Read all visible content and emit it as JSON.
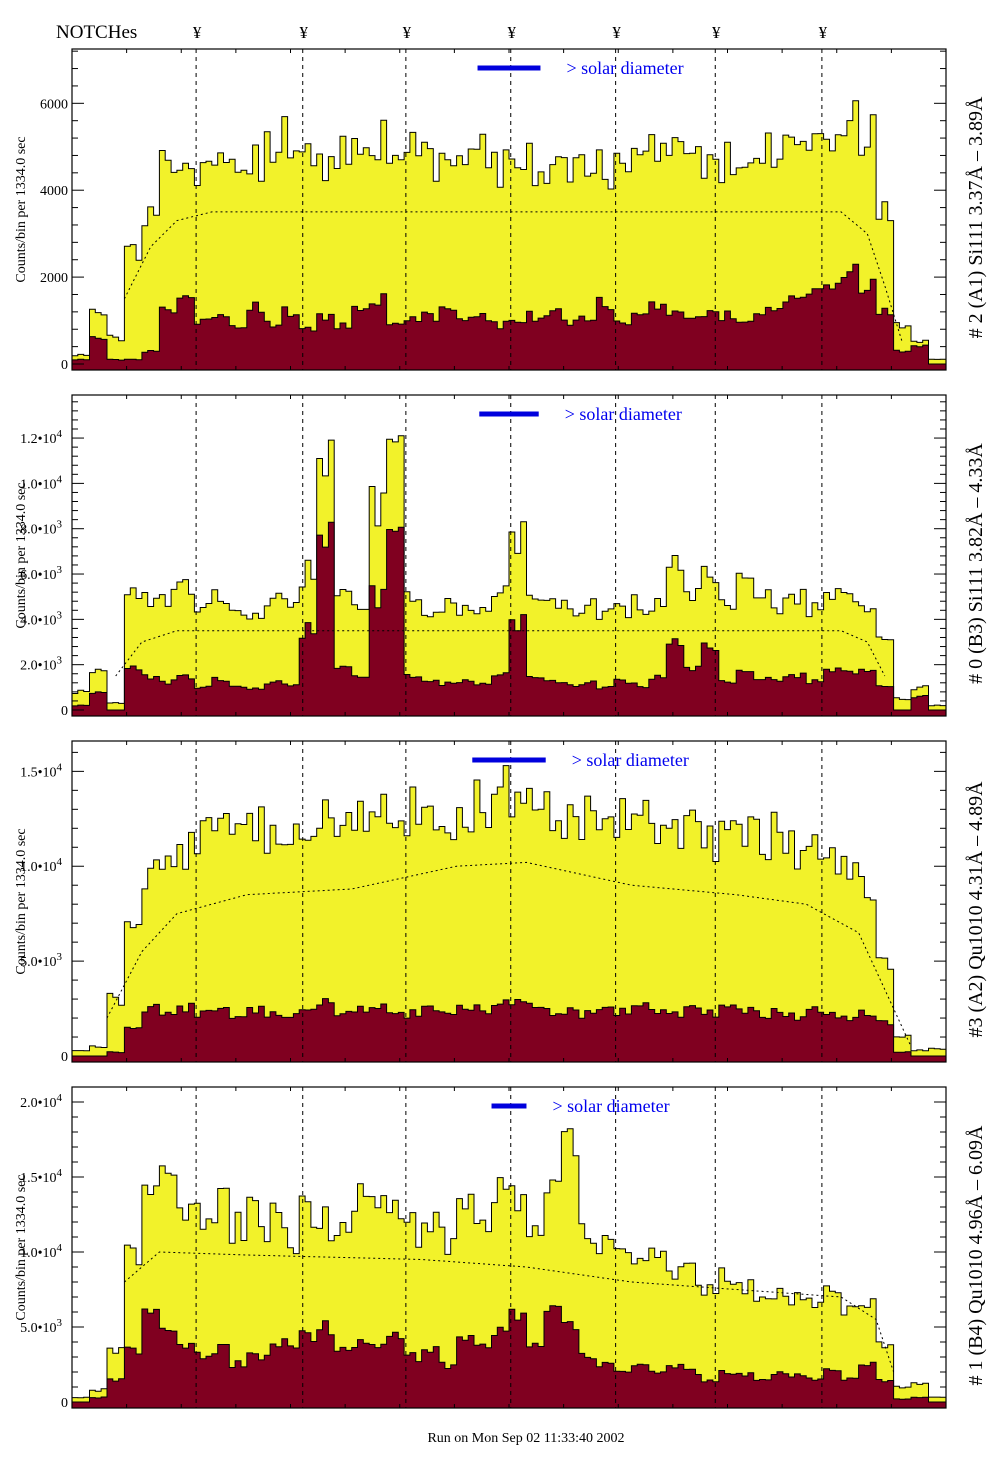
{
  "header": {
    "notches_label": "NOTCHes",
    "notch_symbol": "¥"
  },
  "footer": {
    "run_text": "Run on Mon Sep 02 11:33:40 2002"
  },
  "colors": {
    "total": "#f2f22a",
    "component": "#800020",
    "solar_bar": "#0000dd",
    "solar_text": "#0000ee"
  },
  "chart_data": [
    {
      "type": "bar",
      "title": "# 2 (A1) Si111  3.37Å – 3.89Å",
      "ylabel": "Counts/bin per   1334.0 sec",
      "xlabel": "",
      "ylim": [
        0,
        7250
      ],
      "xlim": [
        0,
        50
      ],
      "yticks": [
        {
          "v": 0,
          "m": "0",
          "e": ""
        },
        {
          "v": 2000,
          "m": "2000",
          "e": ""
        },
        {
          "v": 4000,
          "m": "4000",
          "e": ""
        },
        {
          "v": 6000,
          "m": "6000",
          "e": ""
        }
      ],
      "notches": [
        7.1,
        13.2,
        19.1,
        25.1,
        31.1,
        36.8,
        42.9
      ],
      "solar": {
        "label": "> solar diameter",
        "from": 23.2,
        "to": 26.8
      },
      "total": [
        200,
        1200,
        600,
        2500,
        3500,
        4500,
        5000,
        4500,
        4700,
        4800,
        4600,
        4900,
        5200,
        4800,
        4600,
        5000,
        4700,
        5200,
        4600,
        4900,
        4700,
        4800,
        4600,
        5000,
        4500,
        4700,
        4600,
        4500,
        4700,
        4800,
        4500,
        4900,
        5100,
        4800,
        4700,
        4600,
        4700,
        4600,
        4700,
        4900,
        4800,
        5000,
        5200,
        5400,
        5800,
        5300,
        3500,
        900,
        500,
        100
      ],
      "component": [
        100,
        600,
        100,
        100,
        300,
        1200,
        1700,
        1000,
        1100,
        900,
        1300,
        900,
        1200,
        800,
        1100,
        900,
        1200,
        1500,
        900,
        1000,
        1100,
        1300,
        1000,
        1100,
        900,
        1000,
        1100,
        1200,
        1000,
        1100,
        1400,
        1000,
        1200,
        1300,
        1100,
        1000,
        1200,
        1100,
        1000,
        1200,
        1300,
        1500,
        1700,
        1900,
        2200,
        1800,
        1200,
        300,
        400,
        0
      ],
      "model": [
        [
          3,
          1500
        ],
        [
          4.5,
          2700
        ],
        [
          6,
          3300
        ],
        [
          8,
          3500
        ],
        [
          44,
          3500
        ],
        [
          45.5,
          3000
        ],
        [
          46.5,
          1800
        ],
        [
          47.5,
          500
        ]
      ]
    },
    {
      "type": "bar",
      "title": "# 0 (B3) Si111  3.82Å – 4.33Å",
      "ylabel": "Counts/bin per   1334.0 sec",
      "xlabel": "",
      "ylim": [
        0,
        13900
      ],
      "xlim": [
        0,
        50
      ],
      "yticks": [
        {
          "v": 0,
          "m": "0",
          "e": ""
        },
        {
          "v": 2000,
          "m": "2.0•10",
          "e": "3"
        },
        {
          "v": 4000,
          "m": "4.0•10",
          "e": "3"
        },
        {
          "v": 6000,
          "m": "6.0•10",
          "e": "3"
        },
        {
          "v": 8000,
          "m": "8.0•10",
          "e": "3"
        },
        {
          "v": 10000,
          "m": "1.0•10",
          "e": "4"
        },
        {
          "v": 12000,
          "m": "1.2•10",
          "e": "4"
        }
      ],
      "notches": [
        7.1,
        13.2,
        19.1,
        25.1,
        31.1,
        36.8,
        42.9
      ],
      "solar": {
        "label": "> solar diameter",
        "from": 23.3,
        "to": 26.7
      },
      "total": [
        800,
        1800,
        300,
        5000,
        5000,
        4800,
        5200,
        4500,
        4800,
        4600,
        4400,
        4800,
        4700,
        6000,
        11500,
        5500,
        4600,
        9000,
        12000,
        5000,
        4600,
        4800,
        4500,
        4600,
        5000,
        7500,
        4800,
        4500,
        4400,
        4600,
        4300,
        4500,
        4700,
        4500,
        6500,
        5000,
        6000,
        4500,
        5500,
        4800,
        4700,
        4900,
        4600,
        5200,
        4800,
        4600,
        3000,
        500,
        1000,
        200
      ],
      "component": [
        200,
        800,
        0,
        1800,
        1500,
        1200,
        1400,
        1000,
        1300,
        1100,
        1000,
        1200,
        1100,
        3500,
        8000,
        2000,
        1500,
        5000,
        8000,
        1500,
        1400,
        1200,
        1300,
        1200,
        1500,
        3800,
        1400,
        1200,
        1100,
        1200,
        1000,
        1300,
        1100,
        1400,
        3000,
        1800,
        2800,
        1200,
        1600,
        1300,
        1400,
        1500,
        1300,
        1800,
        1600,
        1800,
        1000,
        0,
        600,
        0
      ],
      "model": [
        [
          2.5,
          1500
        ],
        [
          4,
          3000
        ],
        [
          6,
          3500
        ],
        [
          44,
          3500
        ],
        [
          45.5,
          3000
        ],
        [
          46.5,
          1500
        ]
      ]
    },
    {
      "type": "bar",
      "title": "#3 (A2) Qu1010  4.31Å – 4.89Å",
      "ylabel": "Counts/bin per   1334.0 sec",
      "xlabel": "",
      "ylim": [
        0,
        16600
      ],
      "xlim": [
        0,
        50
      ],
      "yticks": [
        {
          "v": 0,
          "m": "0",
          "e": ""
        },
        {
          "v": 5000,
          "m": "5.0•10",
          "e": "3"
        },
        {
          "v": 10000,
          "m": "1.0•10",
          "e": "4"
        },
        {
          "v": 15000,
          "m": "1.5•10",
          "e": "4"
        }
      ],
      "notches": [
        7.1,
        13.2,
        19.1,
        25.1,
        31.1,
        36.8,
        42.9
      ],
      "solar": {
        "label": "> solar diameter",
        "from": 22.9,
        "to": 27.1
      },
      "total": [
        300,
        500,
        3000,
        7000,
        9500,
        10500,
        11000,
        11500,
        12000,
        11800,
        12500,
        12000,
        11500,
        12200,
        12500,
        12000,
        12300,
        12600,
        12400,
        12800,
        13000,
        12500,
        13200,
        13500,
        14500,
        14000,
        13200,
        12800,
        12500,
        12600,
        12200,
        12400,
        12500,
        12000,
        11800,
        12200,
        11500,
        12000,
        11800,
        11500,
        11800,
        11000,
        10800,
        10500,
        10000,
        9000,
        5000,
        1000,
        300,
        400
      ],
      "component": [
        0,
        0,
        200,
        1500,
        2500,
        2300,
        2600,
        2200,
        2400,
        2000,
        2500,
        2300,
        2100,
        2600,
        2800,
        2200,
        2400,
        2500,
        2300,
        2200,
        2600,
        2400,
        2700,
        2500,
        2800,
        3000,
        2600,
        2300,
        2400,
        2200,
        2500,
        2300,
        2600,
        2400,
        2200,
        2500,
        2300,
        2600,
        2400,
        2200,
        2300,
        2100,
        2400,
        2200,
        2000,
        2300,
        1800,
        200,
        0,
        0
      ],
      "model": [
        [
          2,
          2000
        ],
        [
          4,
          5500
        ],
        [
          6,
          7500
        ],
        [
          10,
          8500
        ],
        [
          16,
          8800
        ],
        [
          22,
          10000
        ],
        [
          26,
          10200
        ],
        [
          32,
          9000
        ],
        [
          38,
          8500
        ],
        [
          42,
          8000
        ],
        [
          45,
          6500
        ],
        [
          47,
          2500
        ],
        [
          48,
          500
        ]
      ]
    },
    {
      "type": "bar",
      "title": "# 1 (B4) Qu1010 4.96Å – 6.09Å",
      "ylabel": "Counts/bin per   1334.0 sec",
      "xlabel": "",
      "ylim": [
        0,
        21000
      ],
      "xlim": [
        0,
        50
      ],
      "yticks": [
        {
          "v": 0,
          "m": "0",
          "e": ""
        },
        {
          "v": 5000,
          "m": "5.0•10",
          "e": "3"
        },
        {
          "v": 10000,
          "m": "1.0•10",
          "e": "4"
        },
        {
          "v": 15000,
          "m": "1.5•10",
          "e": "4"
        },
        {
          "v": 20000,
          "m": "2.0•10",
          "e": "4"
        }
      ],
      "notches": [
        7.1,
        13.2,
        19.1,
        25.1,
        31.1,
        36.8,
        42.9
      ],
      "solar": {
        "label": "> solar diameter",
        "from": 24.0,
        "to": 26.0
      },
      "total": [
        300,
        800,
        3500,
        10000,
        14000,
        16000,
        13500,
        12000,
        13000,
        11500,
        12500,
        12000,
        11000,
        13000,
        12000,
        11500,
        14000,
        12500,
        13000,
        11500,
        12000,
        11000,
        12500,
        11000,
        13500,
        14000,
        12000,
        15000,
        17000,
        11000,
        10500,
        10000,
        9500,
        10000,
        9000,
        8500,
        8000,
        8500,
        7500,
        7000,
        7500,
        7000,
        6500,
        7000,
        6000,
        6500,
        4000,
        1000,
        1200,
        300
      ],
      "component": [
        0,
        300,
        1500,
        3500,
        6000,
        5000,
        4000,
        3000,
        3500,
        2500,
        3000,
        3500,
        4000,
        4500,
        5000,
        3500,
        4000,
        3500,
        4500,
        3000,
        3500,
        2500,
        4000,
        3500,
        4500,
        6000,
        4000,
        6500,
        5000,
        3000,
        2500,
        2000,
        2500,
        2000,
        2500,
        2000,
        1500,
        2000,
        1800,
        1500,
        2000,
        1800,
        1500,
        2000,
        1500,
        2500,
        1500,
        200,
        300,
        0
      ],
      "model": [
        [
          3,
          8000
        ],
        [
          5,
          10000
        ],
        [
          10,
          9800
        ],
        [
          20,
          9500
        ],
        [
          26,
          9000
        ],
        [
          32,
          8000
        ],
        [
          38,
          7500
        ],
        [
          44,
          7000
        ],
        [
          46,
          5500
        ],
        [
          47,
          2000
        ]
      ]
    }
  ]
}
